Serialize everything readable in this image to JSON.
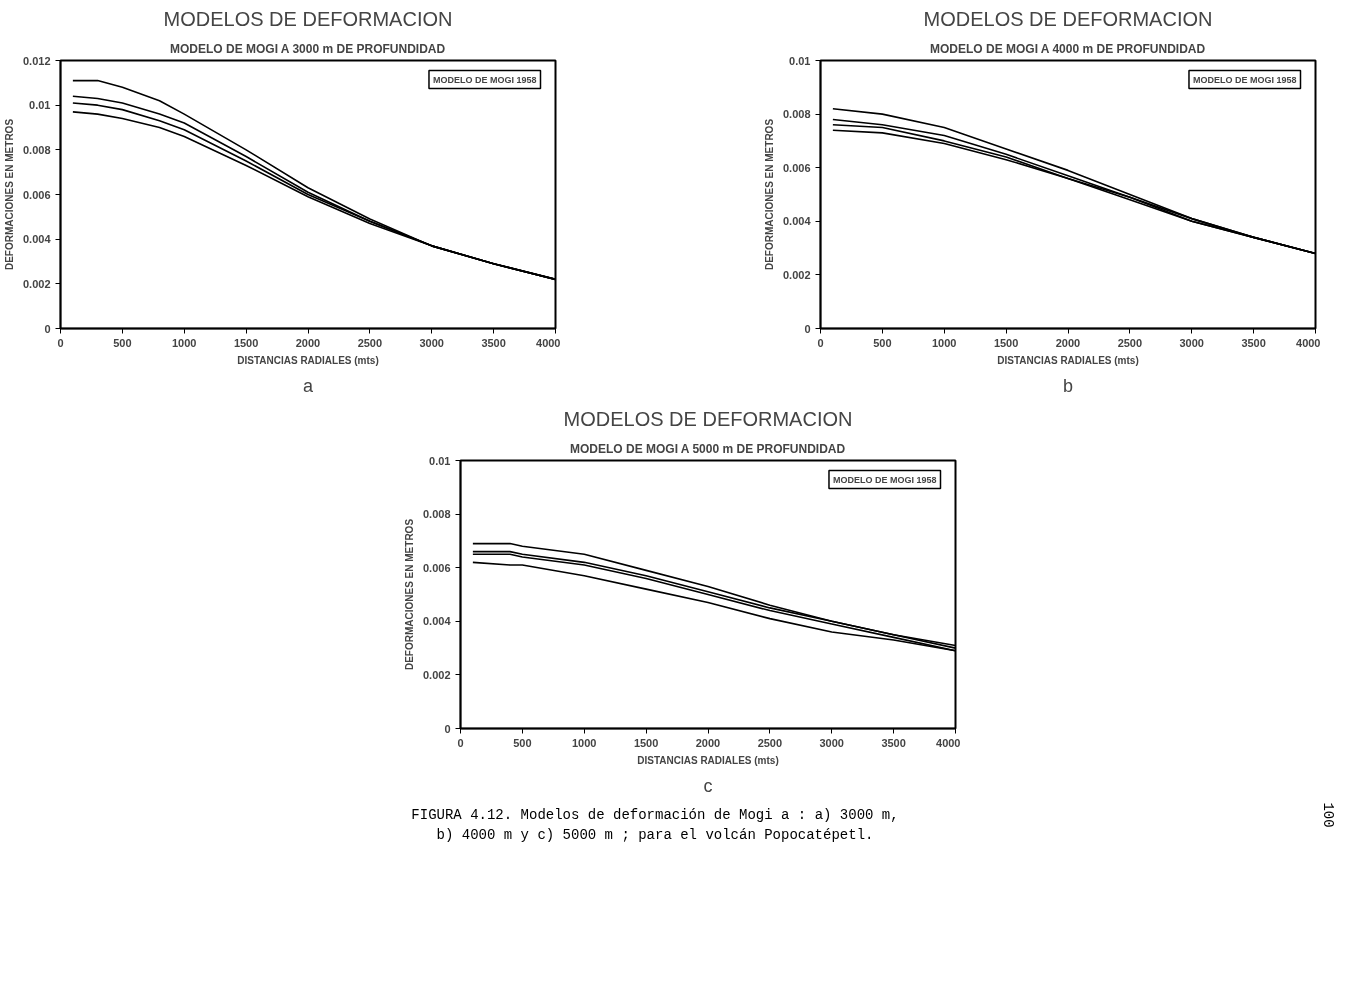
{
  "chart_data": [
    {
      "type": "line",
      "title": "MODELOS DE DEFORMACION",
      "subtitle": "MODELO DE MOGI A 3000 m DE PROFUNDIDAD",
      "xlabel": "DISTANCIAS RADIALES (mts)",
      "ylabel": "DEFORMACIONES EN METROS",
      "x": [
        100,
        300,
        500,
        800,
        1000,
        1500,
        2000,
        2500,
        3000,
        3500,
        4000
      ],
      "series": [
        {
          "color": "#000000",
          "values": [
            0.0111,
            0.0111,
            0.0108,
            0.0102,
            0.0096,
            0.008,
            0.0063,
            0.0049,
            0.0037,
            0.0029,
            0.0022
          ]
        },
        {
          "color": "#000000",
          "values": [
            0.0104,
            0.0103,
            0.0101,
            0.0096,
            0.0092,
            0.0077,
            0.0061,
            0.0048,
            0.0037,
            0.0029,
            0.0022
          ]
        },
        {
          "color": "#000000",
          "values": [
            0.0101,
            0.01,
            0.0098,
            0.0093,
            0.0089,
            0.0075,
            0.006,
            0.0048,
            0.0037,
            0.0029,
            0.0022
          ]
        },
        {
          "color": "#000000",
          "values": [
            0.0097,
            0.0096,
            0.0094,
            0.009,
            0.0086,
            0.0073,
            0.0059,
            0.0047,
            0.0037,
            0.0029,
            0.0022
          ]
        }
      ],
      "xlim": [
        0,
        4000
      ],
      "xticks": [
        0,
        500,
        1000,
        1500,
        2000,
        2500,
        3000,
        3500,
        4000
      ],
      "ylim": [
        0,
        0.012
      ],
      "yticks": [
        0,
        0.002,
        0.004,
        0.006,
        0.008,
        0.01,
        0.012
      ],
      "grid": false,
      "line_style": "solid",
      "annotations": [
        "MODELO DE MOGI 1958",
        "a"
      ]
    },
    {
      "type": "line",
      "title": "MODELOS DE DEFORMACION",
      "subtitle": "MODELO DE MOGI A 4000 m DE PROFUNDIDAD",
      "xlabel": "DISTANCIAS RADIALES (mts)",
      "ylabel": "DEFORMACIONES EN METROS",
      "x": [
        100,
        500,
        1000,
        1500,
        2000,
        2500,
        3000,
        3500,
        4000
      ],
      "series": [
        {
          "color": "#000000",
          "values": [
            0.0082,
            0.008,
            0.0075,
            0.0067,
            0.0059,
            0.005,
            0.0041,
            0.0034,
            0.0028
          ]
        },
        {
          "color": "#000000",
          "values": [
            0.0078,
            0.0076,
            0.0072,
            0.0065,
            0.0057,
            0.0049,
            0.0041,
            0.0034,
            0.0028
          ]
        },
        {
          "color": "#000000",
          "values": [
            0.0076,
            0.0075,
            0.007,
            0.0064,
            0.0056,
            0.0049,
            0.004,
            0.0034,
            0.0028
          ]
        },
        {
          "color": "#000000",
          "values": [
            0.0074,
            0.0073,
            0.0069,
            0.0063,
            0.0056,
            0.0048,
            0.004,
            0.0034,
            0.0028
          ]
        }
      ],
      "xlim": [
        0,
        4000
      ],
      "xticks": [
        0,
        500,
        1000,
        1500,
        2000,
        2500,
        3000,
        3500,
        4000
      ],
      "ylim": [
        0,
        0.01
      ],
      "yticks": [
        0,
        0.002,
        0.004,
        0.006,
        0.008,
        0.01
      ],
      "grid": false,
      "line_style": "solid",
      "annotations": [
        "MODELO DE MOGI 1958",
        "b"
      ]
    },
    {
      "type": "line",
      "title": "MODELOS DE DEFORMACION",
      "subtitle": "MODELO DE MOGI A 5000 m DE PROFUNDIDAD",
      "xlabel": "DISTANCIAS RADIALES (mts)",
      "ylabel": "DEFORMACIONES EN METROS",
      "x": [
        100,
        400,
        500,
        1000,
        1500,
        2000,
        2500,
        3000,
        3500,
        4000
      ],
      "series": [
        {
          "color": "#000000",
          "values": [
            0.0069,
            0.0069,
            0.0068,
            0.0065,
            0.0059,
            0.0053,
            0.0046,
            0.004,
            0.0035,
            0.0031
          ]
        },
        {
          "color": "#000000",
          "values": [
            0.0066,
            0.0066,
            0.0065,
            0.0062,
            0.0057,
            0.0051,
            0.0045,
            0.004,
            0.0035,
            0.003
          ]
        },
        {
          "color": "#000000",
          "values": [
            0.0065,
            0.0065,
            0.0064,
            0.0061,
            0.0056,
            0.005,
            0.0044,
            0.0039,
            0.0034,
            0.0029
          ]
        },
        {
          "color": "#000000",
          "values": [
            0.0062,
            0.0061,
            0.0061,
            0.0057,
            0.0052,
            0.0047,
            0.0041,
            0.0036,
            0.0033,
            0.0029
          ]
        }
      ],
      "xlim": [
        0,
        4000
      ],
      "xticks": [
        0,
        500,
        1000,
        1500,
        2000,
        2500,
        3000,
        3500,
        4000
      ],
      "ylim": [
        0,
        0.01
      ],
      "yticks": [
        0,
        0.002,
        0.004,
        0.006,
        0.008,
        0.01
      ],
      "grid": false,
      "line_style": "solid",
      "annotations": [
        "MODELO DE MOGI 1958",
        "c",
        "FIGURA 4.12. Modelos de deformación de Mogi a : a) 3000 m,",
        "b) 4000 m y c) 5000 m ; para el volcán Popocatépetl.",
        "100"
      ]
    }
  ]
}
